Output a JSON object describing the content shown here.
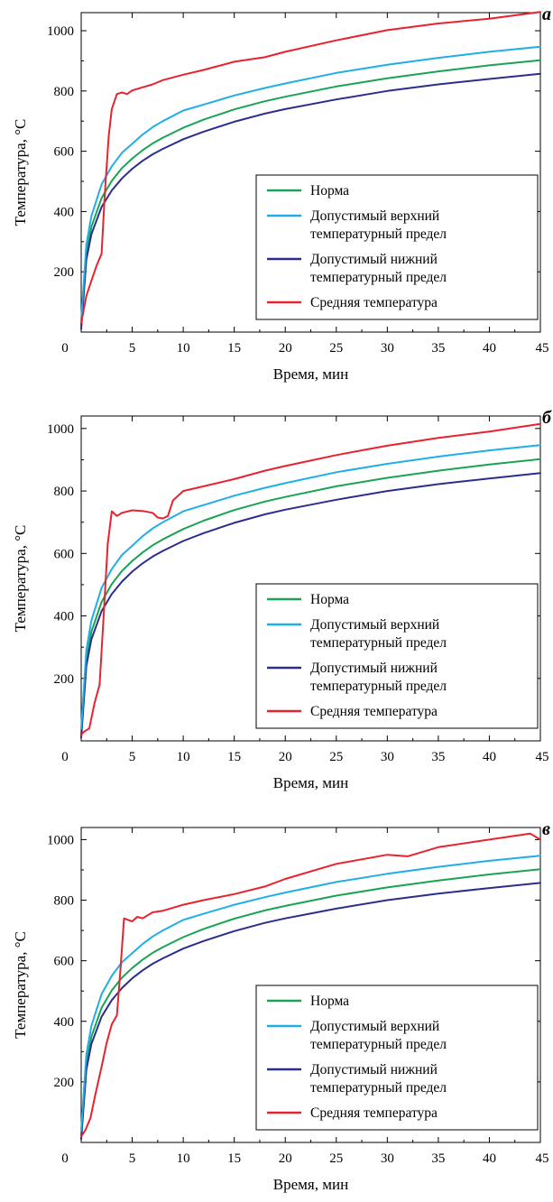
{
  "colors": {
    "norm": "#1aa355",
    "upper": "#20aee6",
    "lower": "#2b2e8c",
    "avg": "#e8232d"
  },
  "chart_data": [
    {
      "type": "line",
      "panel_label": "а",
      "xlabel": "Время, мин",
      "ylabel": "Температура, °C",
      "xlim": [
        0,
        45
      ],
      "ylim": [
        0,
        1060
      ],
      "x_ticks": [
        0,
        5,
        10,
        15,
        20,
        25,
        30,
        35,
        40,
        45
      ],
      "y_ticks": [
        200,
        400,
        600,
        800,
        1000
      ],
      "legend": {
        "position": "bottom-right",
        "entries": [
          {
            "series": "norm",
            "lines": [
              "Норма"
            ]
          },
          {
            "series": "upper",
            "lines": [
              "Допустимый верхний",
              "температурный предел"
            ]
          },
          {
            "series": "lower",
            "lines": [
              "Допустимый нижний",
              "температурный предел"
            ]
          },
          {
            "series": "avg",
            "lines": [
              "Средняя температура"
            ]
          }
        ]
      },
      "series": [
        {
          "key": "norm",
          "x": [
            0,
            0.5,
            1,
            2,
            3,
            4,
            5,
            6,
            7,
            8,
            10,
            12,
            15,
            18,
            20,
            25,
            30,
            35,
            40,
            45
          ],
          "y": [
            20,
            260,
            349,
            445,
            502,
            544,
            576,
            603,
            626,
            645,
            678,
            705,
            739,
            766,
            781,
            815,
            842,
            865,
            885,
            902
          ]
        },
        {
          "key": "upper",
          "x": [
            0,
            0.5,
            1,
            2,
            3,
            4,
            5,
            6,
            7,
            8,
            10,
            12,
            15,
            18,
            20,
            25,
            30,
            35,
            40,
            45
          ],
          "y": [
            40,
            290,
            385,
            490,
            550,
            595,
            625,
            655,
            680,
            700,
            735,
            755,
            785,
            810,
            825,
            860,
            887,
            910,
            930,
            947
          ]
        },
        {
          "key": "lower",
          "x": [
            0,
            0.5,
            1,
            2,
            3,
            4,
            5,
            6,
            7,
            8,
            10,
            12,
            15,
            18,
            20,
            25,
            30,
            35,
            40,
            45
          ],
          "y": [
            10,
            240,
            325,
            415,
            470,
            510,
            542,
            568,
            590,
            608,
            640,
            665,
            698,
            725,
            740,
            772,
            800,
            822,
            840,
            857
          ]
        },
        {
          "key": "avg",
          "x": [
            0,
            0.5,
            1,
            1.5,
            2,
            2.3,
            2.7,
            3,
            3.5,
            4,
            4.5,
            5,
            6,
            7,
            8,
            10,
            12,
            15,
            18,
            20,
            25,
            30,
            35,
            40,
            45
          ],
          "y": [
            30,
            120,
            170,
            220,
            260,
            450,
            650,
            740,
            790,
            795,
            790,
            802,
            812,
            822,
            836,
            854,
            870,
            897,
            912,
            930,
            968,
            1002,
            1024,
            1040,
            1062
          ]
        }
      ]
    },
    {
      "type": "line",
      "panel_label": "б",
      "xlabel": "Время, мин",
      "ylabel": "Температура, °C",
      "xlim": [
        0,
        45
      ],
      "ylim": [
        0,
        1040
      ],
      "x_ticks": [
        0,
        5,
        10,
        15,
        20,
        25,
        30,
        35,
        40,
        45
      ],
      "y_ticks": [
        200,
        400,
        600,
        800,
        1000
      ],
      "legend": {
        "position": "bottom-right",
        "entries": [
          {
            "series": "norm",
            "lines": [
              "Норма"
            ]
          },
          {
            "series": "upper",
            "lines": [
              "Допустимый верхний",
              "температурный предел"
            ]
          },
          {
            "series": "lower",
            "lines": [
              "Допустимый нижний",
              "температурный предел"
            ]
          },
          {
            "series": "avg",
            "lines": [
              "Средняя температура"
            ]
          }
        ]
      },
      "series": [
        {
          "key": "norm",
          "x": [
            0,
            0.5,
            1,
            2,
            3,
            4,
            5,
            6,
            7,
            8,
            10,
            12,
            15,
            18,
            20,
            25,
            30,
            35,
            40,
            45
          ],
          "y": [
            20,
            260,
            349,
            445,
            502,
            544,
            576,
            603,
            626,
            645,
            678,
            705,
            739,
            766,
            781,
            815,
            842,
            865,
            885,
            902
          ]
        },
        {
          "key": "upper",
          "x": [
            0,
            0.5,
            1,
            2,
            3,
            4,
            5,
            6,
            7,
            8,
            10,
            12,
            15,
            18,
            20,
            25,
            30,
            35,
            40,
            45
          ],
          "y": [
            40,
            290,
            385,
            490,
            550,
            595,
            625,
            655,
            680,
            700,
            735,
            755,
            785,
            810,
            825,
            860,
            887,
            910,
            930,
            947
          ]
        },
        {
          "key": "lower",
          "x": [
            0,
            0.5,
            1,
            2,
            3,
            4,
            5,
            6,
            7,
            8,
            10,
            12,
            15,
            18,
            20,
            25,
            30,
            35,
            40,
            45
          ],
          "y": [
            10,
            240,
            325,
            415,
            470,
            510,
            542,
            568,
            590,
            608,
            640,
            665,
            698,
            725,
            740,
            772,
            800,
            822,
            840,
            857
          ]
        },
        {
          "key": "avg",
          "x": [
            0,
            0.3,
            0.8,
            1.3,
            1.8,
            2.2,
            2.6,
            3,
            3.5,
            4,
            5,
            6,
            7,
            7.5,
            8,
            8.5,
            9,
            10,
            12,
            15,
            18,
            20,
            25,
            30,
            35,
            40,
            45
          ],
          "y": [
            20,
            30,
            40,
            120,
            180,
            400,
            630,
            735,
            720,
            730,
            738,
            736,
            730,
            715,
            712,
            720,
            770,
            800,
            815,
            838,
            865,
            880,
            915,
            945,
            970,
            990,
            1015
          ]
        }
      ]
    },
    {
      "type": "line",
      "panel_label": "в",
      "xlabel": "Время, мин",
      "ylabel": "Температура, °C",
      "xlim": [
        0,
        45
      ],
      "ylim": [
        0,
        1040
      ],
      "x_ticks": [
        0,
        5,
        10,
        15,
        20,
        25,
        30,
        35,
        40,
        45
      ],
      "y_ticks": [
        200,
        400,
        600,
        800,
        1000
      ],
      "legend": {
        "position": "bottom-right",
        "entries": [
          {
            "series": "norm",
            "lines": [
              "Норма"
            ]
          },
          {
            "series": "upper",
            "lines": [
              "Допустимый верхний",
              "температурный предел"
            ]
          },
          {
            "series": "lower",
            "lines": [
              "Допустимый нижний",
              "температурный предел"
            ]
          },
          {
            "series": "avg",
            "lines": [
              "Средняя температура"
            ]
          }
        ]
      },
      "series": [
        {
          "key": "norm",
          "x": [
            0,
            0.5,
            1,
            2,
            3,
            4,
            5,
            6,
            7,
            8,
            10,
            12,
            15,
            18,
            20,
            25,
            30,
            35,
            40,
            45
          ],
          "y": [
            20,
            260,
            349,
            445,
            502,
            544,
            576,
            603,
            626,
            645,
            678,
            705,
            739,
            766,
            781,
            815,
            842,
            865,
            885,
            902
          ]
        },
        {
          "key": "upper",
          "x": [
            0,
            0.5,
            1,
            2,
            3,
            4,
            5,
            6,
            7,
            8,
            10,
            12,
            15,
            18,
            20,
            25,
            30,
            35,
            40,
            45
          ],
          "y": [
            40,
            290,
            385,
            490,
            550,
            595,
            625,
            655,
            680,
            700,
            735,
            755,
            785,
            810,
            825,
            860,
            887,
            910,
            930,
            947
          ]
        },
        {
          "key": "lower",
          "x": [
            0,
            0.5,
            1,
            2,
            3,
            4,
            5,
            6,
            7,
            8,
            10,
            12,
            15,
            18,
            20,
            25,
            30,
            35,
            40,
            45
          ],
          "y": [
            10,
            240,
            325,
            415,
            470,
            510,
            542,
            568,
            590,
            608,
            640,
            665,
            698,
            725,
            740,
            772,
            800,
            822,
            840,
            857
          ]
        },
        {
          "key": "avg",
          "x": [
            0,
            0.4,
            0.9,
            1.4,
            2,
            2.5,
            3,
            3.5,
            3.8,
            4.2,
            4.6,
            5,
            5.5,
            6,
            7,
            8,
            9,
            10,
            12,
            15,
            18,
            20,
            25,
            30,
            32,
            35,
            40,
            44,
            45
          ],
          "y": [
            20,
            40,
            80,
            160,
            250,
            330,
            390,
            420,
            550,
            740,
            735,
            730,
            745,
            740,
            760,
            765,
            775,
            785,
            800,
            820,
            845,
            870,
            920,
            950,
            945,
            975,
            1000,
            1020,
            1000
          ]
        }
      ]
    }
  ]
}
